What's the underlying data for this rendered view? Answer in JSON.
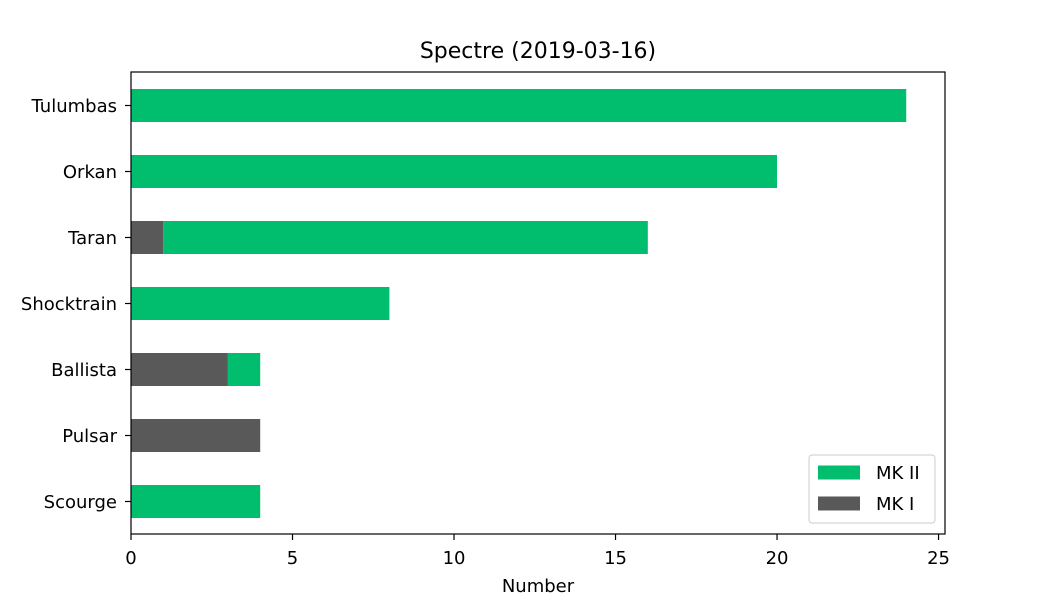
{
  "chart_data": {
    "type": "bar",
    "orientation": "horizontal",
    "stacked": true,
    "title": "Spectre (2019-03-16)",
    "xlabel": "Number",
    "ylabel": "",
    "xlim": [
      0,
      25.2
    ],
    "xticks": [
      0,
      5,
      10,
      15,
      20,
      25
    ],
    "categories": [
      "Tulumbas",
      "Orkan",
      "Taran",
      "Shocktrain",
      "Ballista",
      "Pulsar",
      "Scourge"
    ],
    "series": [
      {
        "name": "MK I",
        "color": "#595959",
        "values": [
          0,
          0,
          1,
          0,
          3,
          4,
          0
        ]
      },
      {
        "name": "MK II",
        "color": "#00be6e",
        "values": [
          24,
          20,
          15,
          8,
          1,
          0,
          4
        ]
      }
    ],
    "legend": {
      "position": "lower-right",
      "order": [
        "MK II",
        "MK I"
      ]
    },
    "grid": false
  }
}
